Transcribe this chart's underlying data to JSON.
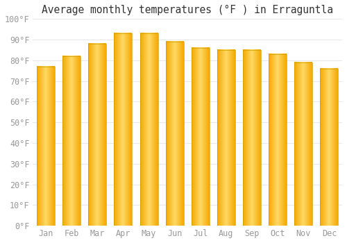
{
  "title": "Average monthly temperatures (°F ) in Erraguntla",
  "months": [
    "Jan",
    "Feb",
    "Mar",
    "Apr",
    "May",
    "Jun",
    "Jul",
    "Aug",
    "Sep",
    "Oct",
    "Nov",
    "Dec"
  ],
  "values": [
    77,
    82,
    88,
    93,
    93,
    89,
    86,
    85,
    85,
    83,
    79,
    76
  ],
  "bar_color_center": "#FFD966",
  "bar_color_edge": "#F5A800",
  "bar_border_color": "#C8A000",
  "ylim": [
    0,
    100
  ],
  "yticks": [
    0,
    10,
    20,
    30,
    40,
    50,
    60,
    70,
    80,
    90,
    100
  ],
  "ytick_labels": [
    "0°F",
    "10°F",
    "20°F",
    "30°F",
    "40°F",
    "50°F",
    "60°F",
    "70°F",
    "80°F",
    "90°F",
    "100°F"
  ],
  "background_color": "#FFFFFF",
  "grid_color": "#E8E8E8",
  "title_fontsize": 10.5,
  "tick_fontsize": 8.5,
  "font_family": "monospace"
}
